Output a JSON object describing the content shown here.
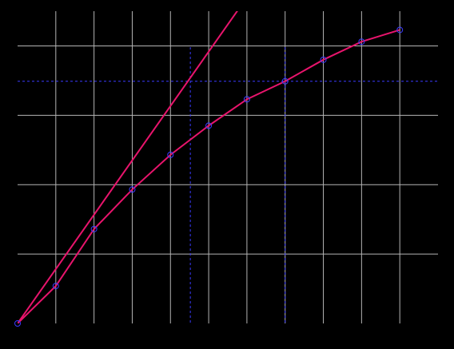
{
  "chart_data": {
    "type": "line",
    "xlim": [
      0,
      11
    ],
    "ylim": [
      0,
      4.5
    ],
    "xticks": [
      1,
      2,
      3,
      4,
      5,
      6,
      7,
      8,
      9,
      10
    ],
    "yticks": [
      1,
      2,
      3,
      4
    ],
    "grid": true,
    "grid_color": "#b4b4b4",
    "hlines": [
      3.49
    ],
    "vlines": [
      4.52,
      7
    ],
    "ref_color": "#3a3aff",
    "series": [
      {
        "color": "#e8146c",
        "markers": false,
        "x": [
          0,
          5.77
        ],
        "values": [
          0,
          4.52
        ]
      },
      {
        "color": "#e8146c",
        "markers": true,
        "marker_color": "#3a3aff",
        "x": [
          0,
          1,
          2,
          3,
          4,
          5,
          6,
          7,
          8,
          9,
          10
        ],
        "values": [
          0,
          0.54,
          1.36,
          1.93,
          2.43,
          2.85,
          3.23,
          3.49,
          3.8,
          4.06,
          4.23
        ]
      }
    ]
  }
}
